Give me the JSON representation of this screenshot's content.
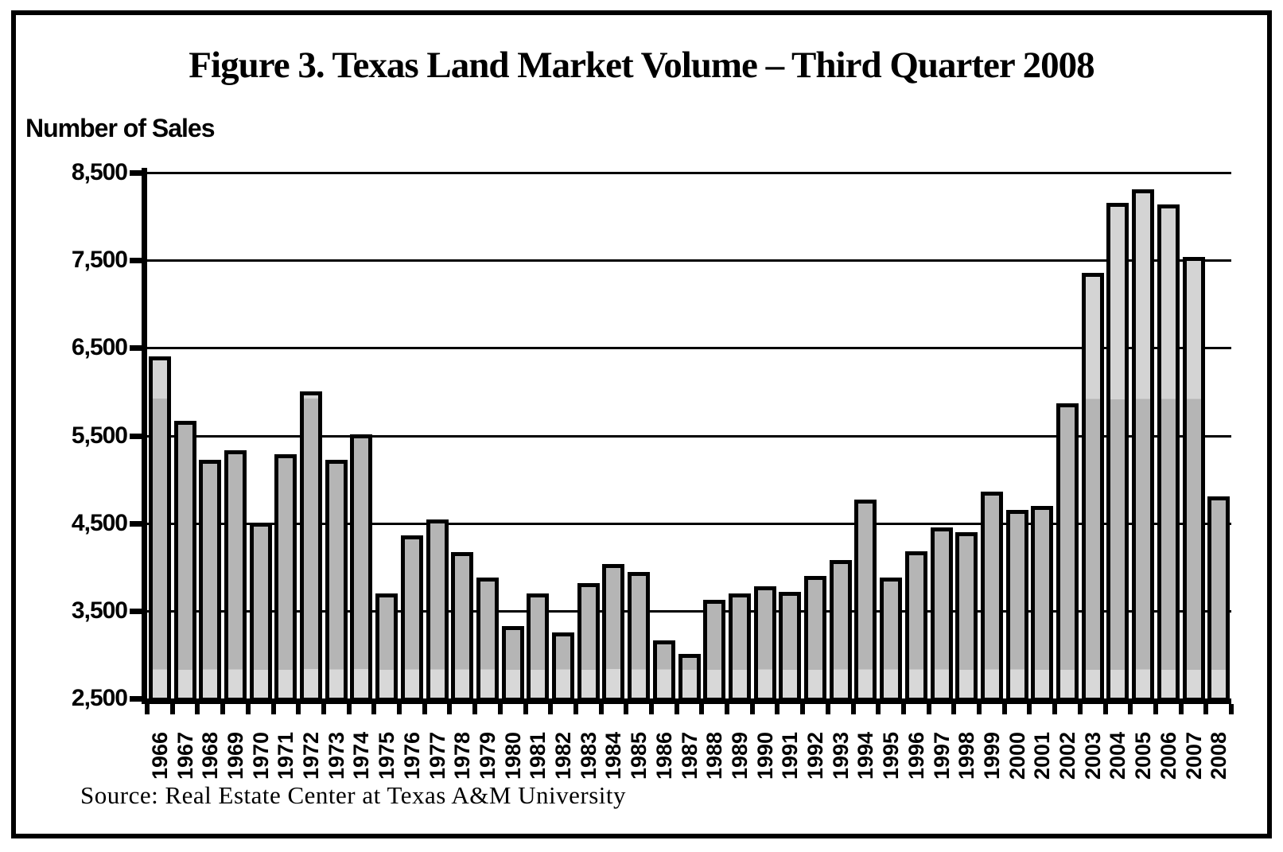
{
  "chart_data": {
    "type": "bar",
    "title": "Figure 3. Texas Land Market Volume – Third Quarter 2008",
    "ylabel": "Number of Sales",
    "source": "Source: Real Estate Center at Texas A&M University",
    "categories": [
      "1966",
      "1967",
      "1968",
      "1969",
      "1970",
      "1971",
      "1972",
      "1973",
      "1974",
      "1975",
      "1976",
      "1977",
      "1978",
      "1979",
      "1980",
      "1981",
      "1982",
      "1983",
      "1984",
      "1985",
      "1986",
      "1987",
      "1988",
      "1989",
      "1990",
      "1991",
      "1992",
      "1993",
      "1994",
      "1995",
      "1996",
      "1997",
      "1998",
      "1999",
      "2000",
      "2001",
      "2002",
      "2003",
      "2004",
      "2005",
      "2006",
      "2007",
      "2008"
    ],
    "values": [
      6400,
      5670,
      5220,
      5330,
      4510,
      5290,
      6000,
      5220,
      5510,
      3700,
      4360,
      4540,
      4170,
      3880,
      3330,
      3700,
      3250,
      3820,
      4030,
      3940,
      3160,
      3010,
      3630,
      3700,
      3780,
      3720,
      3900,
      4080,
      4770,
      3880,
      4180,
      4450,
      4400,
      4860,
      4650,
      4700,
      5870,
      7360,
      8160,
      8310,
      8140,
      7540,
      4810
    ],
    "ylim": [
      2500,
      8500
    ],
    "ytick_step": 1000,
    "ytick_labels": [
      "8,500",
      "7,500",
      "6,500",
      "5,500",
      "4,500",
      "3,500",
      "2,500"
    ],
    "grid": "horizontal, every 1000, black on white",
    "legend_position": "none",
    "bar_style": {
      "outline_color": "#000000",
      "fill_mid": "#b5b5b5",
      "fill_upper_band": "#d4d4d4",
      "fill_lower_band": "#d8d8d8",
      "upper_band_starts_at_value": 5920,
      "lower_band_ends_at_value": 2830
    }
  }
}
